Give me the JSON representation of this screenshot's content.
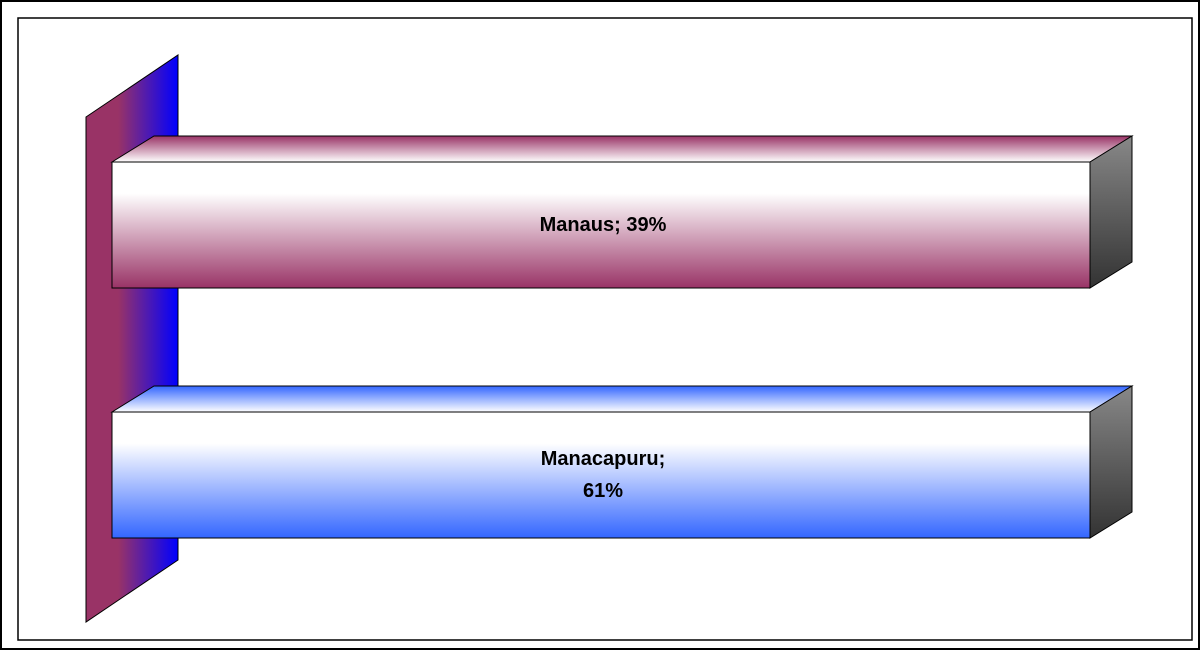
{
  "chart_data": {
    "type": "bar",
    "stacking": "percent",
    "categories": [
      "Manaus",
      "Manacapuru"
    ],
    "values": [
      39,
      61
    ],
    "value_labels": [
      "Manaus; 39%",
      "Manacapuru; 61%"
    ],
    "colors": [
      "#993366",
      "#3366ff"
    ]
  }
}
